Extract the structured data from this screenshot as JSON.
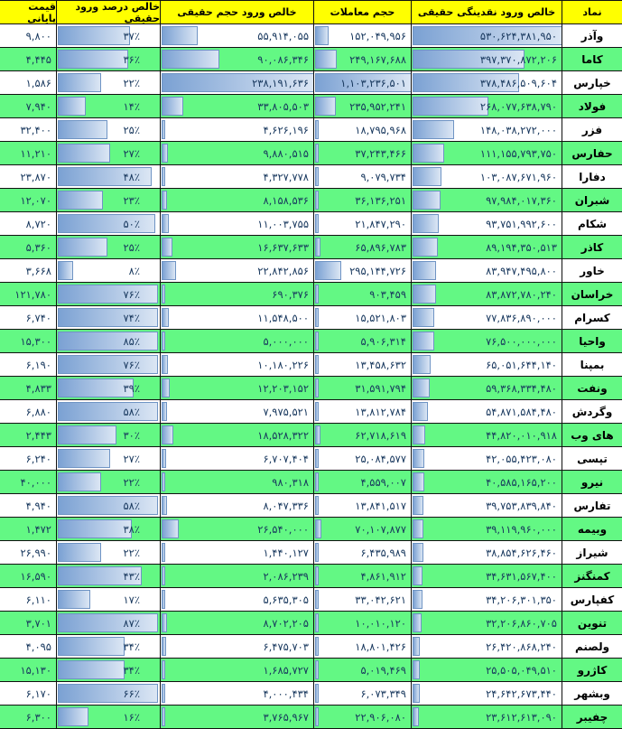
{
  "table": {
    "columns": [
      {
        "key": "symbol",
        "label": "نماد"
      },
      {
        "key": "liquidity",
        "label": "خالص ورود نقدینگی حقیقی"
      },
      {
        "key": "volume",
        "label": "حجم معاملات"
      },
      {
        "key": "vol_net",
        "label": "خالص ورود حجم حقیقی"
      },
      {
        "key": "pct",
        "label": "خالص درصد ورود حقیقی"
      },
      {
        "key": "price",
        "label": "قیمت پایانی"
      }
    ],
    "percent_suffix": "٪",
    "rows": [
      {
        "symbol": "وآذر",
        "liquidity": 530624381950,
        "volume": 152049956,
        "vol_net": 55914055,
        "pct": 37,
        "price": 9800
      },
      {
        "symbol": "کاما",
        "liquidity": 397370872206,
        "volume": 249167688,
        "vol_net": 90086346,
        "pct": 36,
        "price": 4445
      },
      {
        "symbol": "خپارس",
        "liquidity": 378486509604,
        "volume": 1103236501,
        "vol_net": 238191636,
        "pct": 22,
        "price": 1586
      },
      {
        "symbol": "فولاد",
        "liquidity": 268077638790,
        "volume": 235952241,
        "vol_net": 33805503,
        "pct": 14,
        "price": 7940
      },
      {
        "symbol": "فزر",
        "liquidity": 148038272000,
        "volume": 18795968,
        "vol_net": 4626196,
        "pct": 25,
        "price": 32400
      },
      {
        "symbol": "حفارس",
        "liquidity": 111155793750,
        "volume": 37243466,
        "vol_net": 9880515,
        "pct": 27,
        "price": 11210
      },
      {
        "symbol": "دفارا",
        "liquidity": 103087671960,
        "volume": 9079734,
        "vol_net": 4327778,
        "pct": 48,
        "price": 23870
      },
      {
        "symbol": "شبران",
        "liquidity": 97984017360,
        "volume": 36136251,
        "vol_net": 8158536,
        "pct": 23,
        "price": 12070
      },
      {
        "symbol": "شکام",
        "liquidity": 93751992600,
        "volume": 21847290,
        "vol_net": 11003755,
        "pct": 50,
        "price": 8720
      },
      {
        "symbol": "کاذر",
        "liquidity": 89194350513,
        "volume": 65896783,
        "vol_net": 16637633,
        "pct": 25,
        "price": 5360
      },
      {
        "symbol": "خاور",
        "liquidity": 83947495800,
        "volume": 295144726,
        "vol_net": 22842856,
        "pct": 8,
        "price": 3668
      },
      {
        "symbol": "خراسان",
        "liquidity": 83872780240,
        "volume": 903459,
        "vol_net": 690376,
        "pct": 76,
        "price": 121780
      },
      {
        "symbol": "کسرام",
        "liquidity": 77836890000,
        "volume": 15521803,
        "vol_net": 11548500,
        "pct": 74,
        "price": 6740
      },
      {
        "symbol": "واحیا",
        "liquidity": 76500000000,
        "volume": 5906314,
        "vol_net": 5000000,
        "pct": 85,
        "price": 15300
      },
      {
        "symbol": "بمپنا",
        "liquidity": 65051644140,
        "volume": 13458632,
        "vol_net": 10180226,
        "pct": 76,
        "price": 6190
      },
      {
        "symbol": "ونفت",
        "liquidity": 59368334480,
        "volume": 31591794,
        "vol_net": 12203152,
        "pct": 39,
        "price": 4833
      },
      {
        "symbol": "وگردش",
        "liquidity": 54871584480,
        "volume": 13812784,
        "vol_net": 7975521,
        "pct": 58,
        "price": 6880
      },
      {
        "symbol": "های وب",
        "liquidity": 44820010918,
        "volume": 62718619,
        "vol_net": 18528322,
        "pct": 30,
        "price": 2443
      },
      {
        "symbol": "تپسی",
        "liquidity": 42055423080,
        "volume": 25084577,
        "vol_net": 6707404,
        "pct": 27,
        "price": 6240
      },
      {
        "symbol": "نیرو",
        "liquidity": 40585165200,
        "volume": 4559007,
        "vol_net": 980318,
        "pct": 22,
        "price": 40000
      },
      {
        "symbol": "تفارس",
        "liquidity": 39753839840,
        "volume": 13841517,
        "vol_net": 8047336,
        "pct": 58,
        "price": 4940
      },
      {
        "symbol": "وبیمه",
        "liquidity": 39119960000,
        "volume": 70107877,
        "vol_net": 26540000,
        "pct": 38,
        "price": 1472
      },
      {
        "symbol": "شیراز",
        "liquidity": 38854626460,
        "volume": 6435989,
        "vol_net": 1440127,
        "pct": 22,
        "price": 26990
      },
      {
        "symbol": "کمنگنز",
        "liquidity": 34631567400,
        "volume": 4861912,
        "vol_net": 2086239,
        "pct": 43,
        "price": 16590
      },
      {
        "symbol": "کفپارس",
        "liquidity": 34206301350,
        "volume": 33042621,
        "vol_net": 5635305,
        "pct": 17,
        "price": 6110
      },
      {
        "symbol": "تنوین",
        "liquidity": 32206860705,
        "volume": 10010120,
        "vol_net": 8702205,
        "pct": 87,
        "price": 3701
      },
      {
        "symbol": "ولصنم",
        "liquidity": 26420868240,
        "volume": 18801426,
        "vol_net": 6475703,
        "pct": 34,
        "price": 4095
      },
      {
        "symbol": "کاژرو",
        "liquidity": 25505049510,
        "volume": 5019469,
        "vol_net": 1685727,
        "pct": 34,
        "price": 15130
      },
      {
        "symbol": "وبشهر",
        "liquidity": 24642673440,
        "volume": 6073349,
        "vol_net": 4000434,
        "pct": 66,
        "price": 6170
      },
      {
        "symbol": "چفیبر",
        "liquidity": 23612613090,
        "volume": 22906080,
        "vol_net": 3765967,
        "pct": 16,
        "price": 6300
      }
    ],
    "colors": {
      "header_bg": "#FFFF00",
      "row_green": "#63F884",
      "row_white": "#FFFFFF",
      "number_text": "#17375D",
      "bar_gradient_start": "#7BA1D3",
      "bar_gradient_end": "#DBE6F4",
      "bar_border": "#6F94C4",
      "grid_border": "#111111"
    }
  }
}
